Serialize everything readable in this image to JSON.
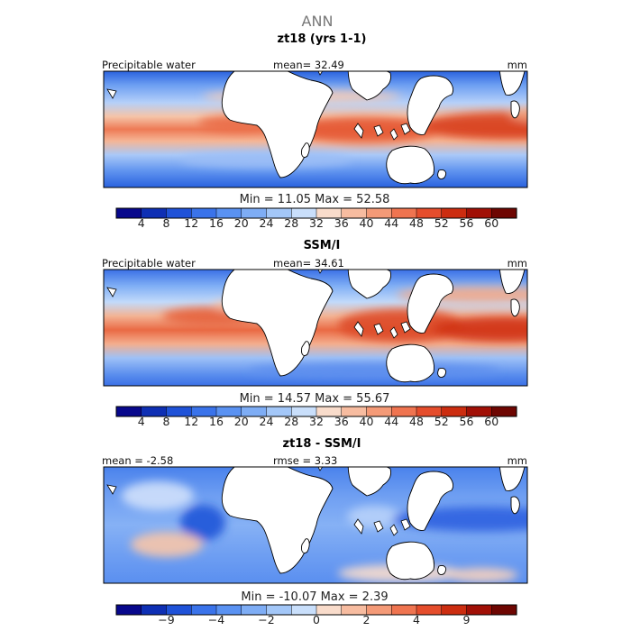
{
  "chart_data": {
    "type": "heatmap",
    "title": "ANN",
    "panels": [
      {
        "subtitle": "zt18 (yrs 1-1)",
        "left_label": "Precipitable water",
        "center_label": "mean=",
        "center_value": "32.49",
        "units": "mm",
        "stats": {
          "min_label": "Min =",
          "min": "11.05",
          "max_label": "Max =",
          "max": "52.58"
        },
        "colorbar": {
          "ticks": [
            "4",
            "8",
            "12",
            "16",
            "20",
            "24",
            "28",
            "32",
            "36",
            "40",
            "44",
            "48",
            "52",
            "56",
            "60"
          ],
          "colors": [
            "#08088c",
            "#0e2fb4",
            "#1f52d8",
            "#3a73ea",
            "#5a92f2",
            "#7eadf5",
            "#a3c7f8",
            "#c9dffb",
            "#f9dccb",
            "#f7bca0",
            "#f49a77",
            "#ef7450",
            "#e54d2c",
            "#cc2d10",
            "#a11006",
            "#6e0602"
          ]
        }
      },
      {
        "subtitle": "SSM/I",
        "left_label": "Precipitable water",
        "center_label": "mean=",
        "center_value": "34.61",
        "units": "mm",
        "stats": {
          "min_label": "Min =",
          "min": "14.57",
          "max_label": "Max =",
          "max": "55.67"
        },
        "colorbar": {
          "ticks": [
            "4",
            "8",
            "12",
            "16",
            "20",
            "24",
            "28",
            "32",
            "36",
            "40",
            "44",
            "48",
            "52",
            "56",
            "60"
          ],
          "colors": [
            "#08088c",
            "#0e2fb4",
            "#1f52d8",
            "#3a73ea",
            "#5a92f2",
            "#7eadf5",
            "#a3c7f8",
            "#c9dffb",
            "#f9dccb",
            "#f7bca0",
            "#f49a77",
            "#ef7450",
            "#e54d2c",
            "#cc2d10",
            "#a11006",
            "#6e0602"
          ]
        }
      },
      {
        "subtitle": "zt18 - SSM/I",
        "left_label": "mean =",
        "left_value": "-2.58",
        "center_label": "rmse =",
        "center_value": "3.33",
        "units": "mm",
        "stats": {
          "min_label": "Min =",
          "min": "-10.07",
          "max_label": "Max =",
          "max": "2.39"
        },
        "colorbar": {
          "ticks": [
            "",
            "-9",
            "",
            "-4",
            "",
            "-2",
            "",
            "0",
            "",
            "2",
            "",
            "4",
            "",
            "9",
            ""
          ],
          "colors": [
            "#08088c",
            "#0e2fb4",
            "#1f52d8",
            "#3a73ea",
            "#5a92f2",
            "#7eadf5",
            "#a3c7f8",
            "#c9dffb",
            "#f9dccb",
            "#f7bca0",
            "#f49a77",
            "#ef7450",
            "#e54d2c",
            "#cc2d10",
            "#a11006",
            "#6e0602"
          ]
        }
      }
    ]
  }
}
